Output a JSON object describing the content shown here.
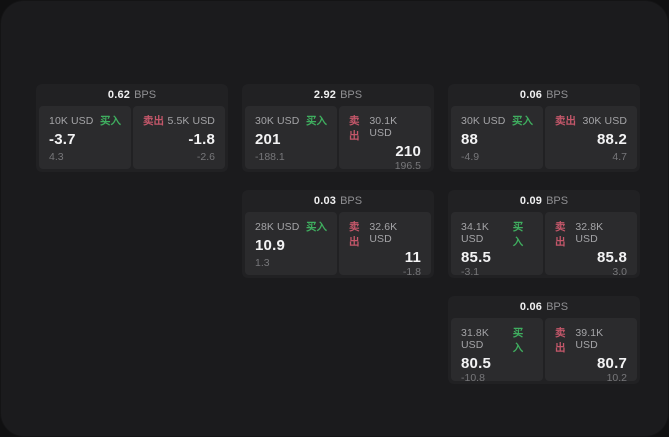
{
  "labels": {
    "bps_unit": "BPS",
    "buy": "买入",
    "sell": "卖出"
  },
  "colors": {
    "buy": "#3fae5f",
    "sell": "#c4576a",
    "panel_bg": "#1b1b1d",
    "card_bg": "#212123",
    "tile_bg": "#2b2b2d"
  },
  "cards": [
    {
      "row": 1,
      "col": 1,
      "bps": "0.62",
      "buy": {
        "amount": "10K USD",
        "value": "-3.7",
        "delta": "4.3"
      },
      "sell": {
        "amount": "5.5K USD",
        "value": "-1.8",
        "delta": "-2.6"
      }
    },
    {
      "row": 1,
      "col": 2,
      "bps": "2.92",
      "buy": {
        "amount": "30K USD",
        "value": "201",
        "delta": "-188.1"
      },
      "sell": {
        "amount": "30.1K USD",
        "value": "210",
        "delta": "196.5"
      }
    },
    {
      "row": 1,
      "col": 3,
      "bps": "0.06",
      "buy": {
        "amount": "30K USD",
        "value": "88",
        "delta": "-4.9"
      },
      "sell": {
        "amount": "30K USD",
        "value": "88.2",
        "delta": "4.7"
      }
    },
    {
      "row": 2,
      "col": 2,
      "bps": "0.03",
      "buy": {
        "amount": "28K USD",
        "value": "10.9",
        "delta": "1.3"
      },
      "sell": {
        "amount": "32.6K USD",
        "value": "11",
        "delta": "-1.8"
      }
    },
    {
      "row": 2,
      "col": 3,
      "bps": "0.09",
      "buy": {
        "amount": "34.1K USD",
        "value": "85.5",
        "delta": "-3.1"
      },
      "sell": {
        "amount": "32.8K USD",
        "value": "85.8",
        "delta": "3.0"
      }
    },
    {
      "row": 3,
      "col": 3,
      "bps": "0.06",
      "buy": {
        "amount": "31.8K USD",
        "value": "80.5",
        "delta": "-10.8"
      },
      "sell": {
        "amount": "39.1K USD",
        "value": "80.7",
        "delta": "10.2"
      }
    }
  ]
}
